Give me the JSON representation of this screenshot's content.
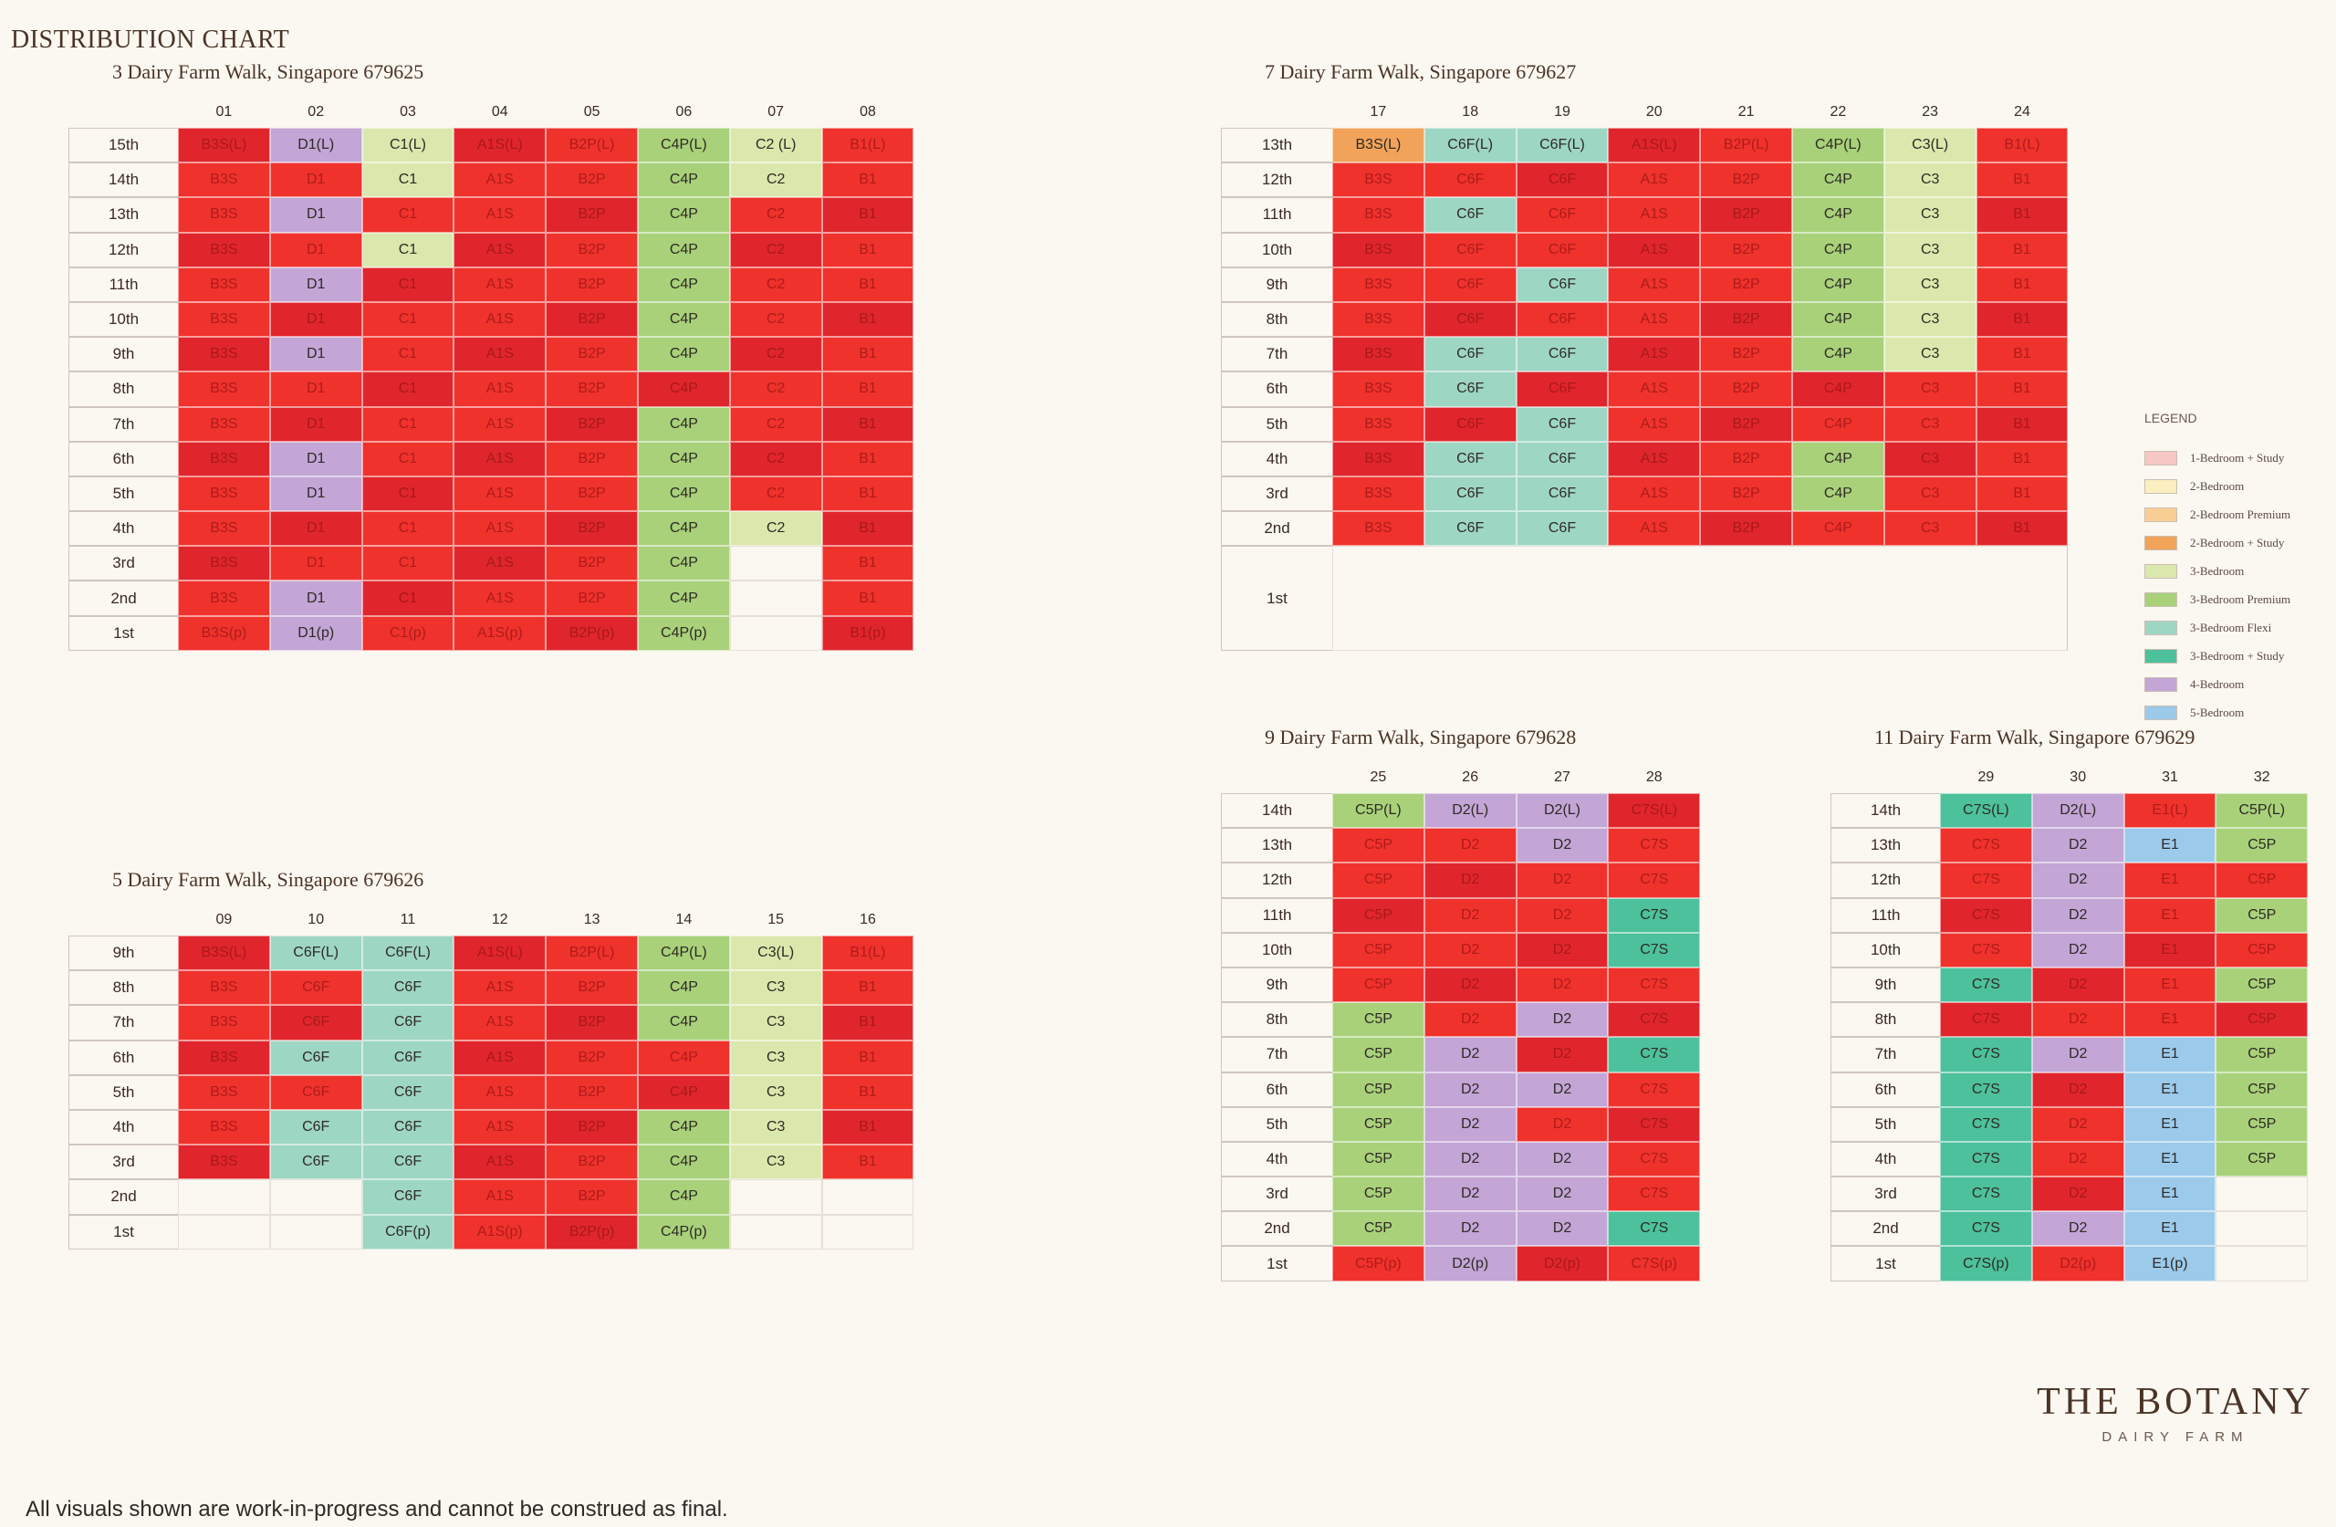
{
  "title": "DISTRIBUTION CHART",
  "colors": {
    "A1S": "#f6c7c4",
    "B_2BR": "#fbeec0",
    "B2P": "#f7cf94",
    "B3S": "#f2a35a",
    "C_3BR": "#dbe8ad",
    "C4P": "#a9d17a",
    "C6F": "#9ed6c4",
    "C7S": "#4dc19b",
    "D": "#c3a5d6",
    "E": "#9ccaeb",
    "sold": "#f0322c",
    "sold_dark": "#e0262c"
  },
  "legend": {
    "title": "LEGEND",
    "items": [
      {
        "label": "1-Bedroom + Study",
        "color": "#f6c7c4"
      },
      {
        "label": "2-Bedroom",
        "color": "#fbeec0"
      },
      {
        "label": "2-Bedroom Premium",
        "color": "#f7cf94"
      },
      {
        "label": "2-Bedroom + Study",
        "color": "#f2a35a"
      },
      {
        "label": "3-Bedroom",
        "color": "#dbe8ad"
      },
      {
        "label": "3-Bedroom Premium",
        "color": "#a9d17a"
      },
      {
        "label": "3-Bedroom Flexi",
        "color": "#9ed6c4"
      },
      {
        "label": "3-Bedroom + Study",
        "color": "#4dc19b"
      },
      {
        "label": "4-Bedroom",
        "color": "#c3a5d6"
      },
      {
        "label": "5-Bedroom",
        "color": "#9ccaeb"
      }
    ]
  },
  "chart_data": [
    {
      "type": "table",
      "title": "3 Dairy Farm Walk, Singapore 679625",
      "columns": [
        "01",
        "02",
        "03",
        "04",
        "05",
        "06",
        "07",
        "08"
      ],
      "rows": [
        "15th",
        "14th",
        "13th",
        "12th",
        "11th",
        "10th",
        "9th",
        "8th",
        "7th",
        "6th",
        "5th",
        "4th",
        "3rd",
        "2nd",
        "1st"
      ],
      "cells": [
        [
          "B3S(L)|s",
          "D1(L)|a",
          "C1(L)|a",
          "A1S(L)|s",
          "B2P(L)|s",
          "C4P(L)|a",
          "C2 (L)|a",
          "B1(L)|s"
        ],
        [
          "B3S|s",
          "D1|s",
          "C1|a",
          "A1S|s",
          "B2P|s",
          "C4P|a",
          "C2|a",
          "B1|s"
        ],
        [
          "B3S|s",
          "D1|a",
          "C1|s",
          "A1S|s",
          "B2P|s",
          "C4P|a",
          "C2|s",
          "B1|s"
        ],
        [
          "B3S|s",
          "D1|s",
          "C1|a",
          "A1S|s",
          "B2P|s",
          "C4P|a",
          "C2|s",
          "B1|s"
        ],
        [
          "B3S|s",
          "D1|a",
          "C1|s",
          "A1S|s",
          "B2P|s",
          "C4P|a",
          "C2|s",
          "B1|s"
        ],
        [
          "B3S|s",
          "D1|s",
          "C1|s",
          "A1S|s",
          "B2P|s",
          "C4P|a",
          "C2|s",
          "B1|s"
        ],
        [
          "B3S|s",
          "D1|a",
          "C1|s",
          "A1S|s",
          "B2P|s",
          "C4P|a",
          "C2|s",
          "B1|s"
        ],
        [
          "B3S|s",
          "D1|s",
          "C1|s",
          "A1S|s",
          "B2P|s",
          "C4P|s",
          "C2|s",
          "B1|s"
        ],
        [
          "B3S|s",
          "D1|s",
          "C1|s",
          "A1S|s",
          "B2P|s",
          "C4P|a",
          "C2|s",
          "B1|s"
        ],
        [
          "B3S|s",
          "D1|a",
          "C1|s",
          "A1S|s",
          "B2P|s",
          "C4P|a",
          "C2|s",
          "B1|s"
        ],
        [
          "B3S|s",
          "D1|a",
          "C1|s",
          "A1S|s",
          "B2P|s",
          "C4P|a",
          "C2|s",
          "B1|s"
        ],
        [
          "B3S|s",
          "D1|s",
          "C1|s",
          "A1S|s",
          "B2P|s",
          "C4P|a",
          "C2|a",
          "B1|s"
        ],
        [
          "B3S|s",
          "D1|s",
          "C1|s",
          "A1S|s",
          "B2P|s",
          "C4P|a",
          "|x",
          "B1|s"
        ],
        [
          "B3S|s",
          "D1|a",
          "C1|s",
          "A1S|s",
          "B2P|s",
          "C4P|a",
          "|x",
          "B1|s"
        ],
        [
          "B3S(p)|s",
          "D1(p)|a",
          "C1(p)|s",
          "A1S(p)|s",
          "B2P(p)|s",
          "C4P(p)|a",
          "|x",
          "B1(p)|s"
        ]
      ]
    },
    {
      "type": "table",
      "title": "7 Dairy Farm Walk, Singapore 679627",
      "columns": [
        "17",
        "18",
        "19",
        "20",
        "21",
        "22",
        "23",
        "24"
      ],
      "rows": [
        "13th",
        "12th",
        "11th",
        "10th",
        "9th",
        "8th",
        "7th",
        "6th",
        "5th",
        "4th",
        "3rd",
        "2nd",
        "1st"
      ],
      "cells": [
        [
          "B3S(L)|a",
          "C6F(L)|a",
          "C6F(L)|a",
          "A1S(L)|s",
          "B2P(L)|s",
          "C4P(L)|a",
          "C3(L)|a",
          "B1(L)|s"
        ],
        [
          "B3S|s",
          "C6F|s",
          "C6F|s",
          "A1S|s",
          "B2P|s",
          "C4P|a",
          "C3|a",
          "B1|s"
        ],
        [
          "B3S|s",
          "C6F|a",
          "C6F|s",
          "A1S|s",
          "B2P|s",
          "C4P|a",
          "C3|a",
          "B1|s"
        ],
        [
          "B3S|s",
          "C6F|s",
          "C6F|s",
          "A1S|s",
          "B2P|s",
          "C4P|a",
          "C3|a",
          "B1|s"
        ],
        [
          "B3S|s",
          "C6F|s",
          "C6F|a",
          "A1S|s",
          "B2P|s",
          "C4P|a",
          "C3|a",
          "B1|s"
        ],
        [
          "B3S|s",
          "C6F|s",
          "C6F|s",
          "A1S|s",
          "B2P|s",
          "C4P|a",
          "C3|a",
          "B1|s"
        ],
        [
          "B3S|s",
          "C6F|a",
          "C6F|a",
          "A1S|s",
          "B2P|s",
          "C4P|a",
          "C3|a",
          "B1|s"
        ],
        [
          "B3S|s",
          "C6F|a",
          "C6F|s",
          "A1S|s",
          "B2P|s",
          "C4P|s",
          "C3|s",
          "B1|s"
        ],
        [
          "B3S|s",
          "C6F|s",
          "C6F|a",
          "A1S|s",
          "B2P|s",
          "C4P|s",
          "C3|s",
          "B1|s"
        ],
        [
          "B3S|s",
          "C6F|a",
          "C6F|a",
          "A1S|s",
          "B2P|s",
          "C4P|a",
          "C3|s",
          "B1|s"
        ],
        [
          "B3S|s",
          "C6F|a",
          "C6F|a",
          "A1S|s",
          "B2P|s",
          "C4P|a",
          "C3|s",
          "B1|s"
        ],
        [
          "B3S|s",
          "C6F|a",
          "C6F|a",
          "A1S|s",
          "B2P|s",
          "C4P|s",
          "C3|s",
          "B1|s"
        ],
        [
          "|x",
          "|x",
          "|x",
          "|x",
          "|x",
          "|x",
          "|x",
          "|x"
        ]
      ]
    },
    {
      "type": "table",
      "title": "5 Dairy Farm Walk, Singapore 679626",
      "columns": [
        "09",
        "10",
        "11",
        "12",
        "13",
        "14",
        "15",
        "16"
      ],
      "rows": [
        "9th",
        "8th",
        "7th",
        "6th",
        "5th",
        "4th",
        "3rd",
        "2nd",
        "1st"
      ],
      "cells": [
        [
          "B3S(L)|s",
          "C6F(L)|a",
          "C6F(L)|a",
          "A1S(L)|s",
          "B2P(L)|s",
          "C4P(L)|a",
          "C3(L)|a",
          "B1(L)|s"
        ],
        [
          "B3S|s",
          "C6F|s",
          "C6F|a",
          "A1S|s",
          "B2P|s",
          "C4P|a",
          "C3|a",
          "B1|s"
        ],
        [
          "B3S|s",
          "C6F|s",
          "C6F|a",
          "A1S|s",
          "B2P|s",
          "C4P|a",
          "C3|a",
          "B1|s"
        ],
        [
          "B3S|s",
          "C6F|a",
          "C6F|a",
          "A1S|s",
          "B2P|s",
          "C4P|s",
          "C3|a",
          "B1|s"
        ],
        [
          "B3S|s",
          "C6F|s",
          "C6F|a",
          "A1S|s",
          "B2P|s",
          "C4P|s",
          "C3|a",
          "B1|s"
        ],
        [
          "B3S|s",
          "C6F|a",
          "C6F|a",
          "A1S|s",
          "B2P|s",
          "C4P|a",
          "C3|a",
          "B1|s"
        ],
        [
          "B3S|s",
          "C6F|a",
          "C6F|a",
          "A1S|s",
          "B2P|s",
          "C4P|a",
          "C3|a",
          "B1|s"
        ],
        [
          "|x",
          "|x",
          "C6F|a",
          "A1S|s",
          "B2P|s",
          "C4P|a",
          "|x",
          "|x"
        ],
        [
          "|x",
          "|x",
          "C6F(p)|a",
          "A1S(p)|s",
          "B2P(p)|s",
          "C4P(p)|a",
          "|x",
          "|x"
        ]
      ]
    },
    {
      "type": "table",
      "title": "9 Dairy Farm Walk, Singapore 679628",
      "columns": [
        "25",
        "26",
        "27",
        "28"
      ],
      "rows": [
        "14th",
        "13th",
        "12th",
        "11th",
        "10th",
        "9th",
        "8th",
        "7th",
        "6th",
        "5th",
        "4th",
        "3rd",
        "2nd",
        "1st"
      ],
      "cells": [
        [
          "C5P(L)|a",
          "D2(L)|a",
          "D2(L)|a",
          "C7S(L)|s"
        ],
        [
          "C5P|s",
          "D2|s",
          "D2|a",
          "C7S|s"
        ],
        [
          "C5P|s",
          "D2|s",
          "D2|s",
          "C7S|s"
        ],
        [
          "C5P|s",
          "D2|s",
          "D2|s",
          "C7S|a"
        ],
        [
          "C5P|s",
          "D2|s",
          "D2|s",
          "C7S|a"
        ],
        [
          "C5P|s",
          "D2|s",
          "D2|s",
          "C7S|s"
        ],
        [
          "C5P|a",
          "D2|s",
          "D2|a",
          "C7S|s"
        ],
        [
          "C5P|a",
          "D2|a",
          "D2|s",
          "C7S|a"
        ],
        [
          "C5P|a",
          "D2|a",
          "D2|a",
          "C7S|s"
        ],
        [
          "C5P|a",
          "D2|a",
          "D2|s",
          "C7S|s"
        ],
        [
          "C5P|a",
          "D2|a",
          "D2|a",
          "C7S|s"
        ],
        [
          "C5P|a",
          "D2|a",
          "D2|a",
          "C7S|s"
        ],
        [
          "C5P|a",
          "D2|a",
          "D2|a",
          "C7S|a"
        ],
        [
          "C5P(p)|s",
          "D2(p)|a",
          "D2(p)|s",
          "C7S(p)|s"
        ]
      ]
    },
    {
      "type": "table",
      "title": "11 Dairy Farm Walk, Singapore 679629",
      "columns": [
        "29",
        "30",
        "31",
        "32"
      ],
      "rows": [
        "14th",
        "13th",
        "12th",
        "11th",
        "10th",
        "9th",
        "8th",
        "7th",
        "6th",
        "5th",
        "4th",
        "3rd",
        "2nd",
        "1st"
      ],
      "cells": [
        [
          "C7S(L)|a",
          "D2(L)|a",
          "E1(L)|s",
          "C5P(L)|a"
        ],
        [
          "C7S|s",
          "D2|a",
          "E1|a",
          "C5P|a"
        ],
        [
          "C7S|s",
          "D2|a",
          "E1|s",
          "C5P|s"
        ],
        [
          "C7S|s",
          "D2|a",
          "E1|s",
          "C5P|a"
        ],
        [
          "C7S|s",
          "D2|a",
          "E1|s",
          "C5P|s"
        ],
        [
          "C7S|a",
          "D2|s",
          "E1|s",
          "C5P|a"
        ],
        [
          "C7S|s",
          "D2|s",
          "E1|s",
          "C5P|s"
        ],
        [
          "C7S|a",
          "D2|a",
          "E1|a",
          "C5P|a"
        ],
        [
          "C7S|a",
          "D2|s",
          "E1|a",
          "C5P|a"
        ],
        [
          "C7S|a",
          "D2|s",
          "E1|a",
          "C5P|a"
        ],
        [
          "C7S|a",
          "D2|s",
          "E1|a",
          "C5P|a"
        ],
        [
          "C7S|a",
          "D2|s",
          "E1|a",
          "|x"
        ],
        [
          "C7S|a",
          "D2|a",
          "E1|a",
          "|x"
        ],
        [
          "C7S(p)|a",
          "D2(p)|s",
          "E1(p)|a",
          "|x"
        ]
      ]
    }
  ],
  "brand": {
    "name": "THE BOTANY",
    "sub": "DAIRY FARM"
  },
  "disclaimer": "All visuals shown are work-in-progress and cannot be construed as final."
}
